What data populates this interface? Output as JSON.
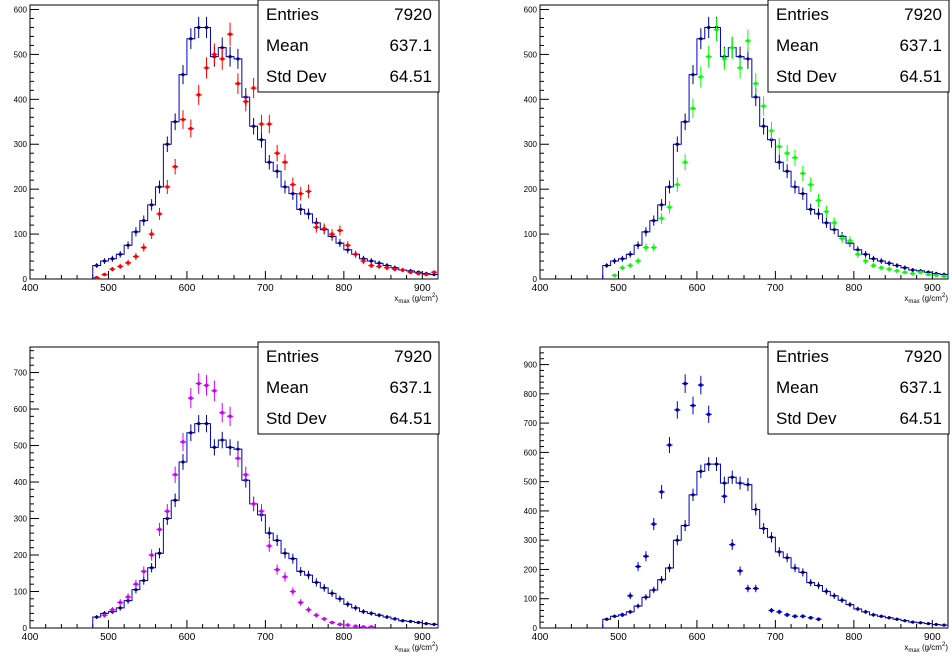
{
  "chart_data": [
    {
      "type": "histogram",
      "xlabel_main": "x",
      "xlabel_sub": "max",
      "xlabel_unit": " (g/cm",
      "xlabel_sup": "2",
      "xlabel_close": ")",
      "xlim": [
        400,
        920
      ],
      "ylim": [
        0,
        610
      ],
      "xticks": [
        400,
        500,
        600,
        700,
        800,
        900
      ],
      "yticks": [
        0,
        100,
        200,
        300,
        400,
        500,
        600
      ],
      "stats": [
        {
          "label": "Entries",
          "value": "7920"
        },
        {
          "label": "Mean",
          "value": "637.1"
        },
        {
          "label": "Std Dev",
          "value": "64.51"
        }
      ],
      "reference_color": "#00007f",
      "overlay_color": "#ff0000",
      "overlay": [
        [
          485,
          3
        ],
        [
          495,
          10
        ],
        [
          505,
          22
        ],
        [
          515,
          28
        ],
        [
          525,
          36
        ],
        [
          535,
          50
        ],
        [
          545,
          70
        ],
        [
          555,
          100
        ],
        [
          565,
          145
        ],
        [
          575,
          205
        ],
        [
          585,
          250
        ],
        [
          595,
          355
        ],
        [
          605,
          335
        ],
        [
          615,
          410
        ],
        [
          625,
          470
        ],
        [
          635,
          500
        ],
        [
          645,
          490
        ],
        [
          655,
          545
        ],
        [
          665,
          435
        ],
        [
          675,
          395
        ],
        [
          685,
          425
        ],
        [
          695,
          345
        ],
        [
          705,
          345
        ],
        [
          715,
          280
        ],
        [
          725,
          260
        ],
        [
          735,
          210
        ],
        [
          745,
          190
        ],
        [
          755,
          195
        ],
        [
          765,
          115
        ],
        [
          775,
          112
        ],
        [
          785,
          100
        ],
        [
          795,
          108
        ],
        [
          805,
          75
        ],
        [
          815,
          55
        ],
        [
          825,
          40
        ],
        [
          835,
          30
        ],
        [
          845,
          28
        ],
        [
          855,
          25
        ],
        [
          865,
          22
        ],
        [
          875,
          20
        ],
        [
          885,
          15
        ],
        [
          895,
          12
        ],
        [
          905,
          10
        ],
        [
          915,
          15
        ]
      ]
    },
    {
      "type": "histogram",
      "xlabel_main": "x",
      "xlabel_sub": "max",
      "xlabel_unit": " (g/cm",
      "xlabel_sup": "2",
      "xlabel_close": ")",
      "xlim": [
        400,
        920
      ],
      "ylim": [
        0,
        610
      ],
      "xticks": [
        400,
        500,
        600,
        700,
        800,
        900
      ],
      "yticks": [
        0,
        100,
        200,
        300,
        400,
        500,
        600
      ],
      "stats": [
        {
          "label": "Entries",
          "value": "7920"
        },
        {
          "label": "Mean",
          "value": "637.1"
        },
        {
          "label": "Std Dev",
          "value": "64.51"
        }
      ],
      "reference_color": "#00007f",
      "overlay_color": "#00ff00",
      "overlay": [
        [
          495,
          8
        ],
        [
          505,
          25
        ],
        [
          515,
          30
        ],
        [
          525,
          40
        ],
        [
          535,
          70
        ],
        [
          545,
          70
        ],
        [
          555,
          135
        ],
        [
          565,
          160
        ],
        [
          575,
          210
        ],
        [
          585,
          260
        ],
        [
          595,
          380
        ],
        [
          605,
          450
        ],
        [
          615,
          495
        ],
        [
          625,
          555
        ],
        [
          635,
          490
        ],
        [
          645,
          515
        ],
        [
          655,
          470
        ],
        [
          665,
          530
        ],
        [
          675,
          435
        ],
        [
          685,
          385
        ],
        [
          695,
          330
        ],
        [
          705,
          295
        ],
        [
          715,
          280
        ],
        [
          725,
          270
        ],
        [
          735,
          235
        ],
        [
          745,
          210
        ],
        [
          755,
          175
        ],
        [
          765,
          150
        ],
        [
          775,
          125
        ],
        [
          785,
          90
        ],
        [
          795,
          85
        ],
        [
          805,
          55
        ],
        [
          815,
          40
        ],
        [
          825,
          30
        ],
        [
          835,
          25
        ],
        [
          845,
          22
        ],
        [
          855,
          18
        ],
        [
          865,
          15
        ],
        [
          875,
          12
        ],
        [
          885,
          15
        ],
        [
          895,
          10
        ],
        [
          905,
          8
        ],
        [
          915,
          6
        ]
      ]
    },
    {
      "type": "histogram",
      "xlabel_main": "x",
      "xlabel_sub": "max",
      "xlabel_unit": " (g/cm",
      "xlabel_sup": "2",
      "xlabel_close": ")",
      "xlim": [
        400,
        920
      ],
      "ylim": [
        0,
        770
      ],
      "xticks": [
        400,
        500,
        600,
        700,
        800,
        900
      ],
      "yticks": [
        0,
        100,
        200,
        300,
        400,
        500,
        600,
        700
      ],
      "stats": [
        {
          "label": "Entries",
          "value": "7920"
        },
        {
          "label": "Mean",
          "value": "637.1"
        },
        {
          "label": "Std Dev",
          "value": "64.51"
        }
      ],
      "reference_color": "#00007f",
      "overlay_color": "#cc00ff",
      "overlay": [
        [
          495,
          35
        ],
        [
          505,
          50
        ],
        [
          515,
          70
        ],
        [
          525,
          85
        ],
        [
          535,
          120
        ],
        [
          545,
          155
        ],
        [
          555,
          200
        ],
        [
          565,
          270
        ],
        [
          575,
          320
        ],
        [
          585,
          420
        ],
        [
          595,
          510
        ],
        [
          605,
          630
        ],
        [
          615,
          670
        ],
        [
          625,
          665
        ],
        [
          635,
          650
        ],
        [
          645,
          590
        ],
        [
          655,
          580
        ],
        [
          665,
          465
        ],
        [
          675,
          420
        ],
        [
          685,
          340
        ],
        [
          695,
          320
        ],
        [
          705,
          225
        ],
        [
          715,
          160
        ],
        [
          725,
          140
        ],
        [
          735,
          100
        ],
        [
          745,
          70
        ],
        [
          755,
          50
        ],
        [
          765,
          35
        ],
        [
          775,
          25
        ],
        [
          785,
          15
        ],
        [
          795,
          10
        ],
        [
          805,
          8
        ],
        [
          815,
          5
        ],
        [
          825,
          3
        ],
        [
          835,
          3
        ]
      ]
    },
    {
      "type": "histogram",
      "xlabel_main": "x",
      "xlabel_sub": "max",
      "xlabel_unit": " (g/cm",
      "xlabel_sup": "2",
      "xlabel_close": ")",
      "xlim": [
        400,
        920
      ],
      "ylim": [
        0,
        960
      ],
      "xticks": [
        400,
        500,
        600,
        700,
        800,
        900
      ],
      "yticks": [
        0,
        100,
        200,
        300,
        400,
        500,
        600,
        700,
        800,
        900
      ],
      "stats": [
        {
          "label": "Entries",
          "value": "7920"
        },
        {
          "label": "Mean",
          "value": "637.1"
        },
        {
          "label": "Std Dev",
          "value": "64.51"
        }
      ],
      "reference_color": "#00007f",
      "overlay_color": "#0000cc",
      "overlay": [
        [
          505,
          45
        ],
        [
          515,
          110
        ],
        [
          525,
          210
        ],
        [
          535,
          245
        ],
        [
          545,
          355
        ],
        [
          555,
          465
        ],
        [
          565,
          625
        ],
        [
          575,
          745
        ],
        [
          585,
          835
        ],
        [
          595,
          760
        ],
        [
          605,
          830
        ],
        [
          615,
          730
        ],
        [
          635,
          450
        ],
        [
          645,
          285
        ],
        [
          655,
          195
        ],
        [
          665,
          135
        ],
        [
          675,
          135
        ],
        [
          695,
          60
        ],
        [
          705,
          55
        ],
        [
          715,
          45
        ],
        [
          725,
          40
        ],
        [
          735,
          40
        ],
        [
          745,
          35
        ],
        [
          755,
          30
        ]
      ]
    }
  ],
  "reference_histogram": [
    [
      485,
      30
    ],
    [
      495,
      40
    ],
    [
      505,
      45
    ],
    [
      515,
      55
    ],
    [
      525,
      75
    ],
    [
      535,
      105
    ],
    [
      545,
      130
    ],
    [
      555,
      165
    ],
    [
      565,
      205
    ],
    [
      575,
      300
    ],
    [
      585,
      350
    ],
    [
      595,
      455
    ],
    [
      605,
      535
    ],
    [
      615,
      560
    ],
    [
      625,
      560
    ],
    [
      635,
      495
    ],
    [
      645,
      515
    ],
    [
      655,
      495
    ],
    [
      665,
      490
    ],
    [
      675,
      405
    ],
    [
      685,
      340
    ],
    [
      695,
      310
    ],
    [
      705,
      260
    ],
    [
      715,
      240
    ],
    [
      725,
      205
    ],
    [
      735,
      190
    ],
    [
      745,
      155
    ],
    [
      755,
      145
    ],
    [
      765,
      125
    ],
    [
      775,
      110
    ],
    [
      785,
      95
    ],
    [
      795,
      80
    ],
    [
      805,
      65
    ],
    [
      815,
      55
    ],
    [
      825,
      45
    ],
    [
      835,
      40
    ],
    [
      845,
      35
    ],
    [
      855,
      30
    ],
    [
      865,
      25
    ],
    [
      875,
      20
    ],
    [
      885,
      18
    ],
    [
      895,
      15
    ],
    [
      905,
      12
    ],
    [
      915,
      10
    ]
  ]
}
